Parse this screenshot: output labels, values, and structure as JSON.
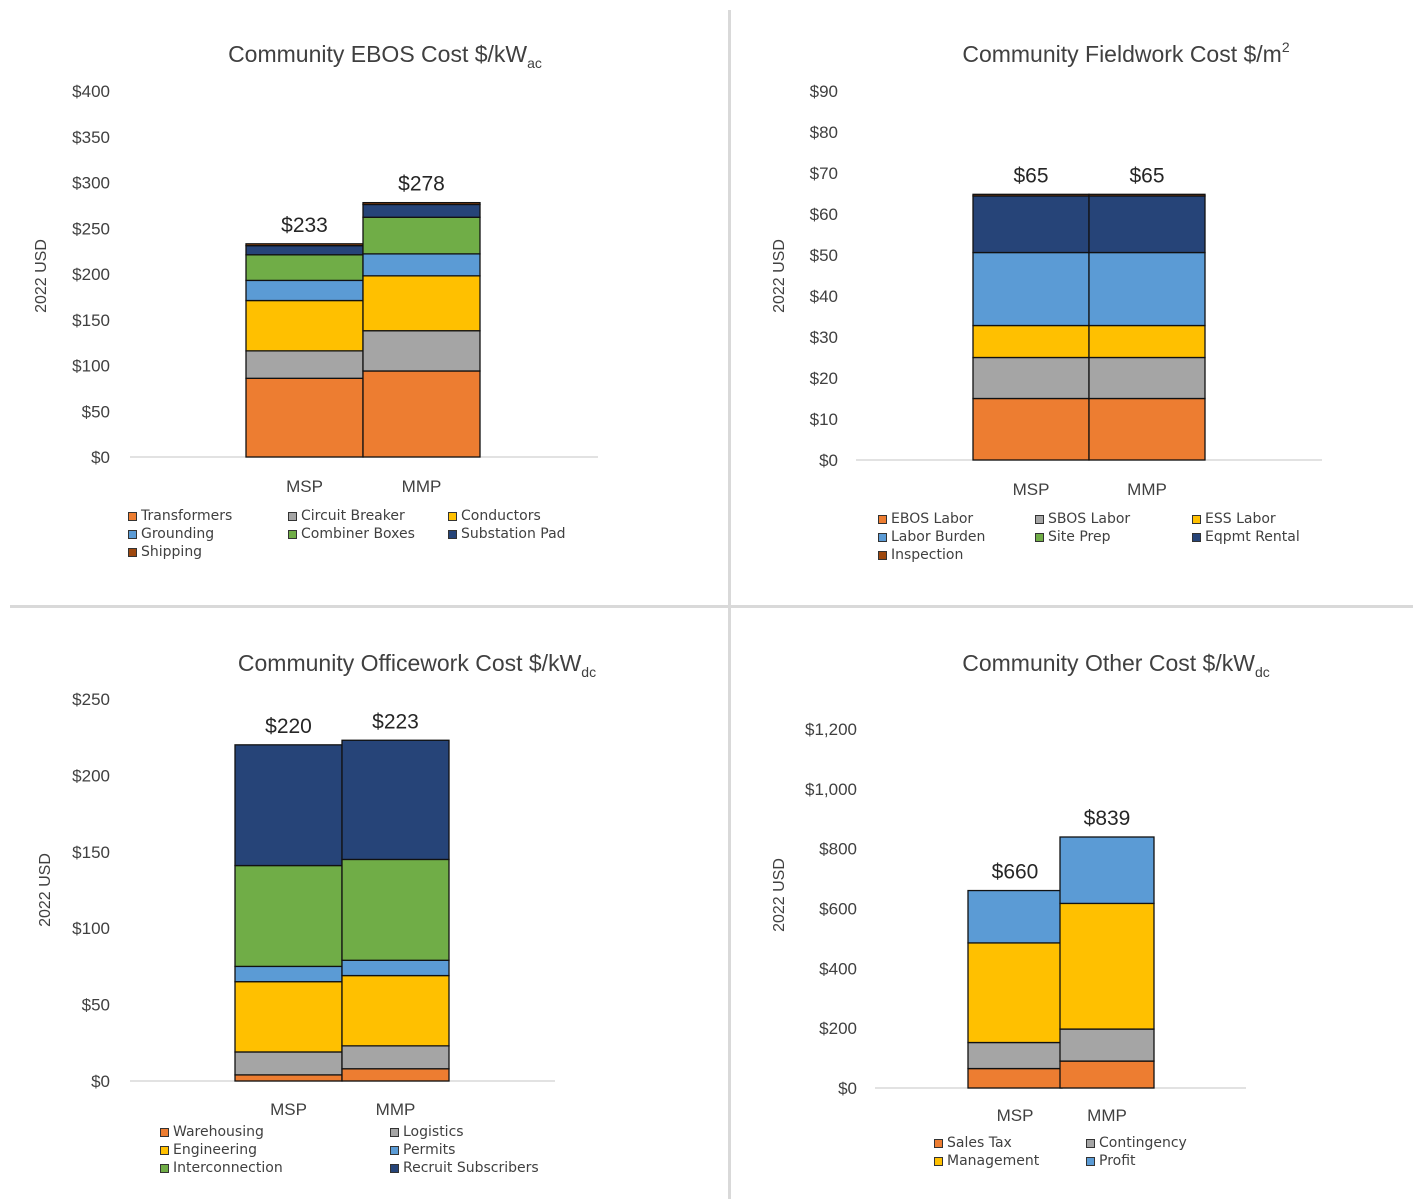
{
  "colors": {
    "orange": "#ED7D31",
    "gray": "#A5A5A5",
    "gold": "#FFC000",
    "light_blue": "#5B9BD5",
    "green": "#70AD47",
    "navy": "#264478",
    "brown": "#9E480E",
    "axis": "#d9d9d9",
    "text": "#404040"
  },
  "chart_data": [
    {
      "type": "bar",
      "stacked": true,
      "title": "Community EBOS Cost $/kW",
      "title_subscript": "ac",
      "ylabel": "2022 USD",
      "ylim": [
        0,
        400
      ],
      "yticks": [
        "$0",
        "$50",
        "$100",
        "$150",
        "$200",
        "$250",
        "$300",
        "$350",
        "$400"
      ],
      "categories": [
        "MSP",
        "MMP"
      ],
      "totals": [
        "$233",
        "$278"
      ],
      "legend_columns": 3,
      "series": [
        {
          "name": "Transformers",
          "color": "orange",
          "values": [
            86,
            94
          ]
        },
        {
          "name": "Circuit Breaker",
          "color": "gray",
          "values": [
            30,
            44
          ]
        },
        {
          "name": "Conductors",
          "color": "gold",
          "values": [
            55,
            60
          ]
        },
        {
          "name": "Grounding",
          "color": "light_blue",
          "values": [
            22,
            24
          ]
        },
        {
          "name": "Combiner Boxes",
          "color": "green",
          "values": [
            28,
            40
          ]
        },
        {
          "name": "Substation Pad",
          "color": "navy",
          "values": [
            10,
            14
          ]
        },
        {
          "name": "Shipping",
          "color": "brown",
          "values": [
            2,
            2
          ]
        }
      ]
    },
    {
      "type": "bar",
      "stacked": true,
      "title": "Community Fieldwork Cost $/m",
      "title_superscript": "2",
      "ylabel": "2022 USD",
      "ylim": [
        0,
        90
      ],
      "yticks": [
        "$0",
        "$10",
        "$20",
        "$30",
        "$40",
        "$50",
        "$60",
        "$70",
        "$80",
        "$90"
      ],
      "categories": [
        "MSP",
        "MMP"
      ],
      "totals": [
        "$65",
        "$65"
      ],
      "legend_columns": 3,
      "series": [
        {
          "name": "EBOS Labor",
          "color": "orange",
          "values": [
            15,
            15
          ]
        },
        {
          "name": "SBOS Labor",
          "color": "gray",
          "values": [
            10,
            10
          ]
        },
        {
          "name": "ESS Labor",
          "color": "gold",
          "values": [
            7.8,
            7.8
          ]
        },
        {
          "name": "Labor Burden",
          "color": "light_blue",
          "values": [
            17.8,
            17.8
          ]
        },
        {
          "name": "Site Prep",
          "color": "green",
          "values": [
            0,
            0
          ]
        },
        {
          "name": "Eqpmt Rental",
          "color": "navy",
          "values": [
            13.8,
            13.8
          ]
        },
        {
          "name": "Inspection",
          "color": "brown",
          "values": [
            0.4,
            0.4
          ]
        }
      ]
    },
    {
      "type": "bar",
      "stacked": true,
      "title": "Community Officework Cost $/kW",
      "title_subscript": "dc",
      "ylabel": "2022 USD",
      "ylim": [
        0,
        250
      ],
      "yticks": [
        "$0",
        "$50",
        "$100",
        "$150",
        "$200",
        "$250"
      ],
      "categories": [
        "MSP",
        "MMP"
      ],
      "totals": [
        "$220",
        "$223"
      ],
      "legend_columns": 2,
      "series": [
        {
          "name": "Warehousing",
          "color": "orange",
          "values": [
            4,
            8
          ]
        },
        {
          "name": "Logistics",
          "color": "gray",
          "values": [
            15,
            15
          ]
        },
        {
          "name": "Engineering",
          "color": "gold",
          "values": [
            46,
            46
          ]
        },
        {
          "name": "Permits",
          "color": "light_blue",
          "values": [
            10,
            10
          ]
        },
        {
          "name": "Interconnection",
          "color": "green",
          "values": [
            66,
            66
          ]
        },
        {
          "name": "Recruit Subscribers",
          "color": "navy",
          "values": [
            79,
            78
          ]
        }
      ]
    },
    {
      "type": "bar",
      "stacked": true,
      "title": "Community Other Cost $/kW",
      "title_subscript": "dc",
      "ylabel": "2022 USD",
      "ylim": [
        0,
        1200
      ],
      "yticks": [
        "$0",
        "$200",
        "$400",
        "$600",
        "$800",
        "$1,000",
        "$1,200"
      ],
      "categories": [
        "MSP",
        "MMP"
      ],
      "totals": [
        "$660",
        "$839"
      ],
      "legend_columns": 2,
      "series": [
        {
          "name": "Sales Tax",
          "color": "orange",
          "values": [
            65,
            90
          ]
        },
        {
          "name": "Contingency",
          "color": "gray",
          "values": [
            87,
            107
          ]
        },
        {
          "name": "Management",
          "color": "gold",
          "values": [
            333,
            420
          ]
        },
        {
          "name": "Profit",
          "color": "light_blue",
          "values": [
            175,
            222
          ]
        }
      ]
    }
  ]
}
